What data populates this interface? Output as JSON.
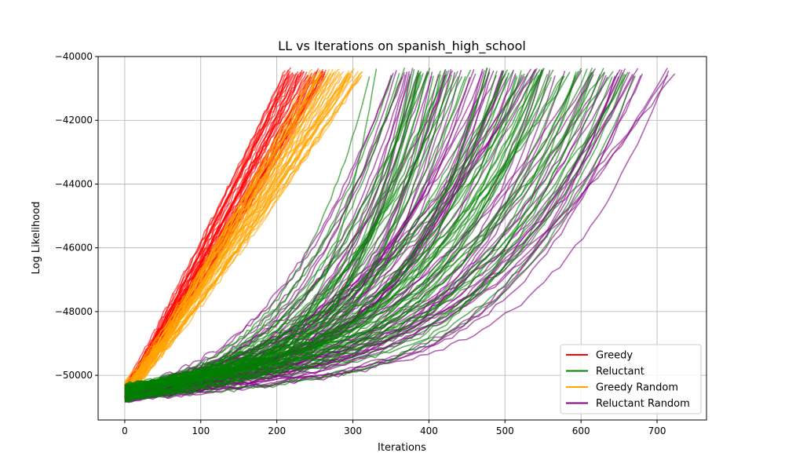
{
  "chart_data": {
    "type": "line",
    "title": "LL vs Iterations on spanish_high_school",
    "xlabel": "Iterations",
    "ylabel": "Log Likelihood",
    "xlim": [
      -35,
      765
    ],
    "ylim": [
      -51400,
      -40000
    ],
    "xticks": [
      0,
      100,
      200,
      300,
      400,
      500,
      600,
      700
    ],
    "yticks": [
      -50000,
      -48000,
      -46000,
      -44000,
      -42000,
      -40000
    ],
    "ytick_labels": [
      "−50000",
      "−48000",
      "−46000",
      "−44000",
      "−42000",
      "−40000"
    ],
    "grid": true,
    "legend_position": "lower-right",
    "series": [
      {
        "name": "Greedy",
        "color": "#ff0000",
        "count": 40,
        "end_x_range": [
          210,
          265
        ],
        "start_y_range": [
          -50700,
          -50300
        ],
        "end_y": -40500,
        "shape": "linear"
      },
      {
        "name": "Reluctant",
        "color": "#008000",
        "count": 75,
        "end_x_range": [
          320,
          680
        ],
        "start_y_range": [
          -50800,
          -50300
        ],
        "end_y": -40500,
        "shape": "convex"
      },
      {
        "name": "Greedy Random",
        "color": "#ffa500",
        "count": 40,
        "end_x_range": [
          245,
          315
        ],
        "start_y_range": [
          -50800,
          -50200
        ],
        "end_y": -40500,
        "shape": "linear"
      },
      {
        "name": "Reluctant Random",
        "color": "#800080",
        "count": 75,
        "end_x_range": [
          350,
          730
        ],
        "start_y_range": [
          -50850,
          -50400
        ],
        "end_y": -40500,
        "shape": "convex"
      }
    ]
  }
}
